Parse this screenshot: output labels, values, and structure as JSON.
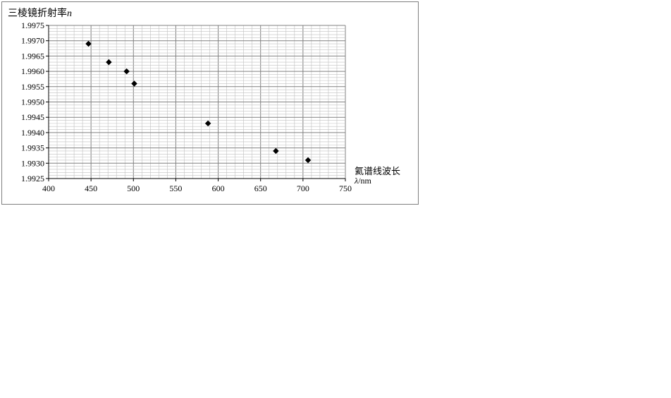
{
  "chart_data": {
    "type": "scatter",
    "ylabel_main": "三棱镜折射率",
    "ylabel_symbol": "n",
    "xlabel_main": "氦谱线波长",
    "xlabel_symbol": "λ",
    "xlabel_unit": "/nm",
    "xlim": [
      400,
      750
    ],
    "ylim": [
      1.9925,
      1.9975
    ],
    "xticks": [
      "400",
      "450",
      "500",
      "550",
      "600",
      "650",
      "700",
      "750"
    ],
    "yticks": [
      "1.9925",
      "1.9930",
      "1.9935",
      "1.9940",
      "1.9945",
      "1.9950",
      "1.9955",
      "1.9960",
      "1.9965",
      "1.9970",
      "1.9975"
    ],
    "grid": true,
    "marker": "diamond",
    "colors": {
      "marker": "#000000",
      "major_grid": "#808080",
      "minor_grid": "#c0c0c0"
    },
    "points": [
      {
        "x": 447,
        "y": 1.9969
      },
      {
        "x": 471,
        "y": 1.9963
      },
      {
        "x": 492,
        "y": 1.996
      },
      {
        "x": 501,
        "y": 1.9956
      },
      {
        "x": 588,
        "y": 1.9943
      },
      {
        "x": 668,
        "y": 1.9934
      },
      {
        "x": 706,
        "y": 1.9931
      }
    ]
  }
}
